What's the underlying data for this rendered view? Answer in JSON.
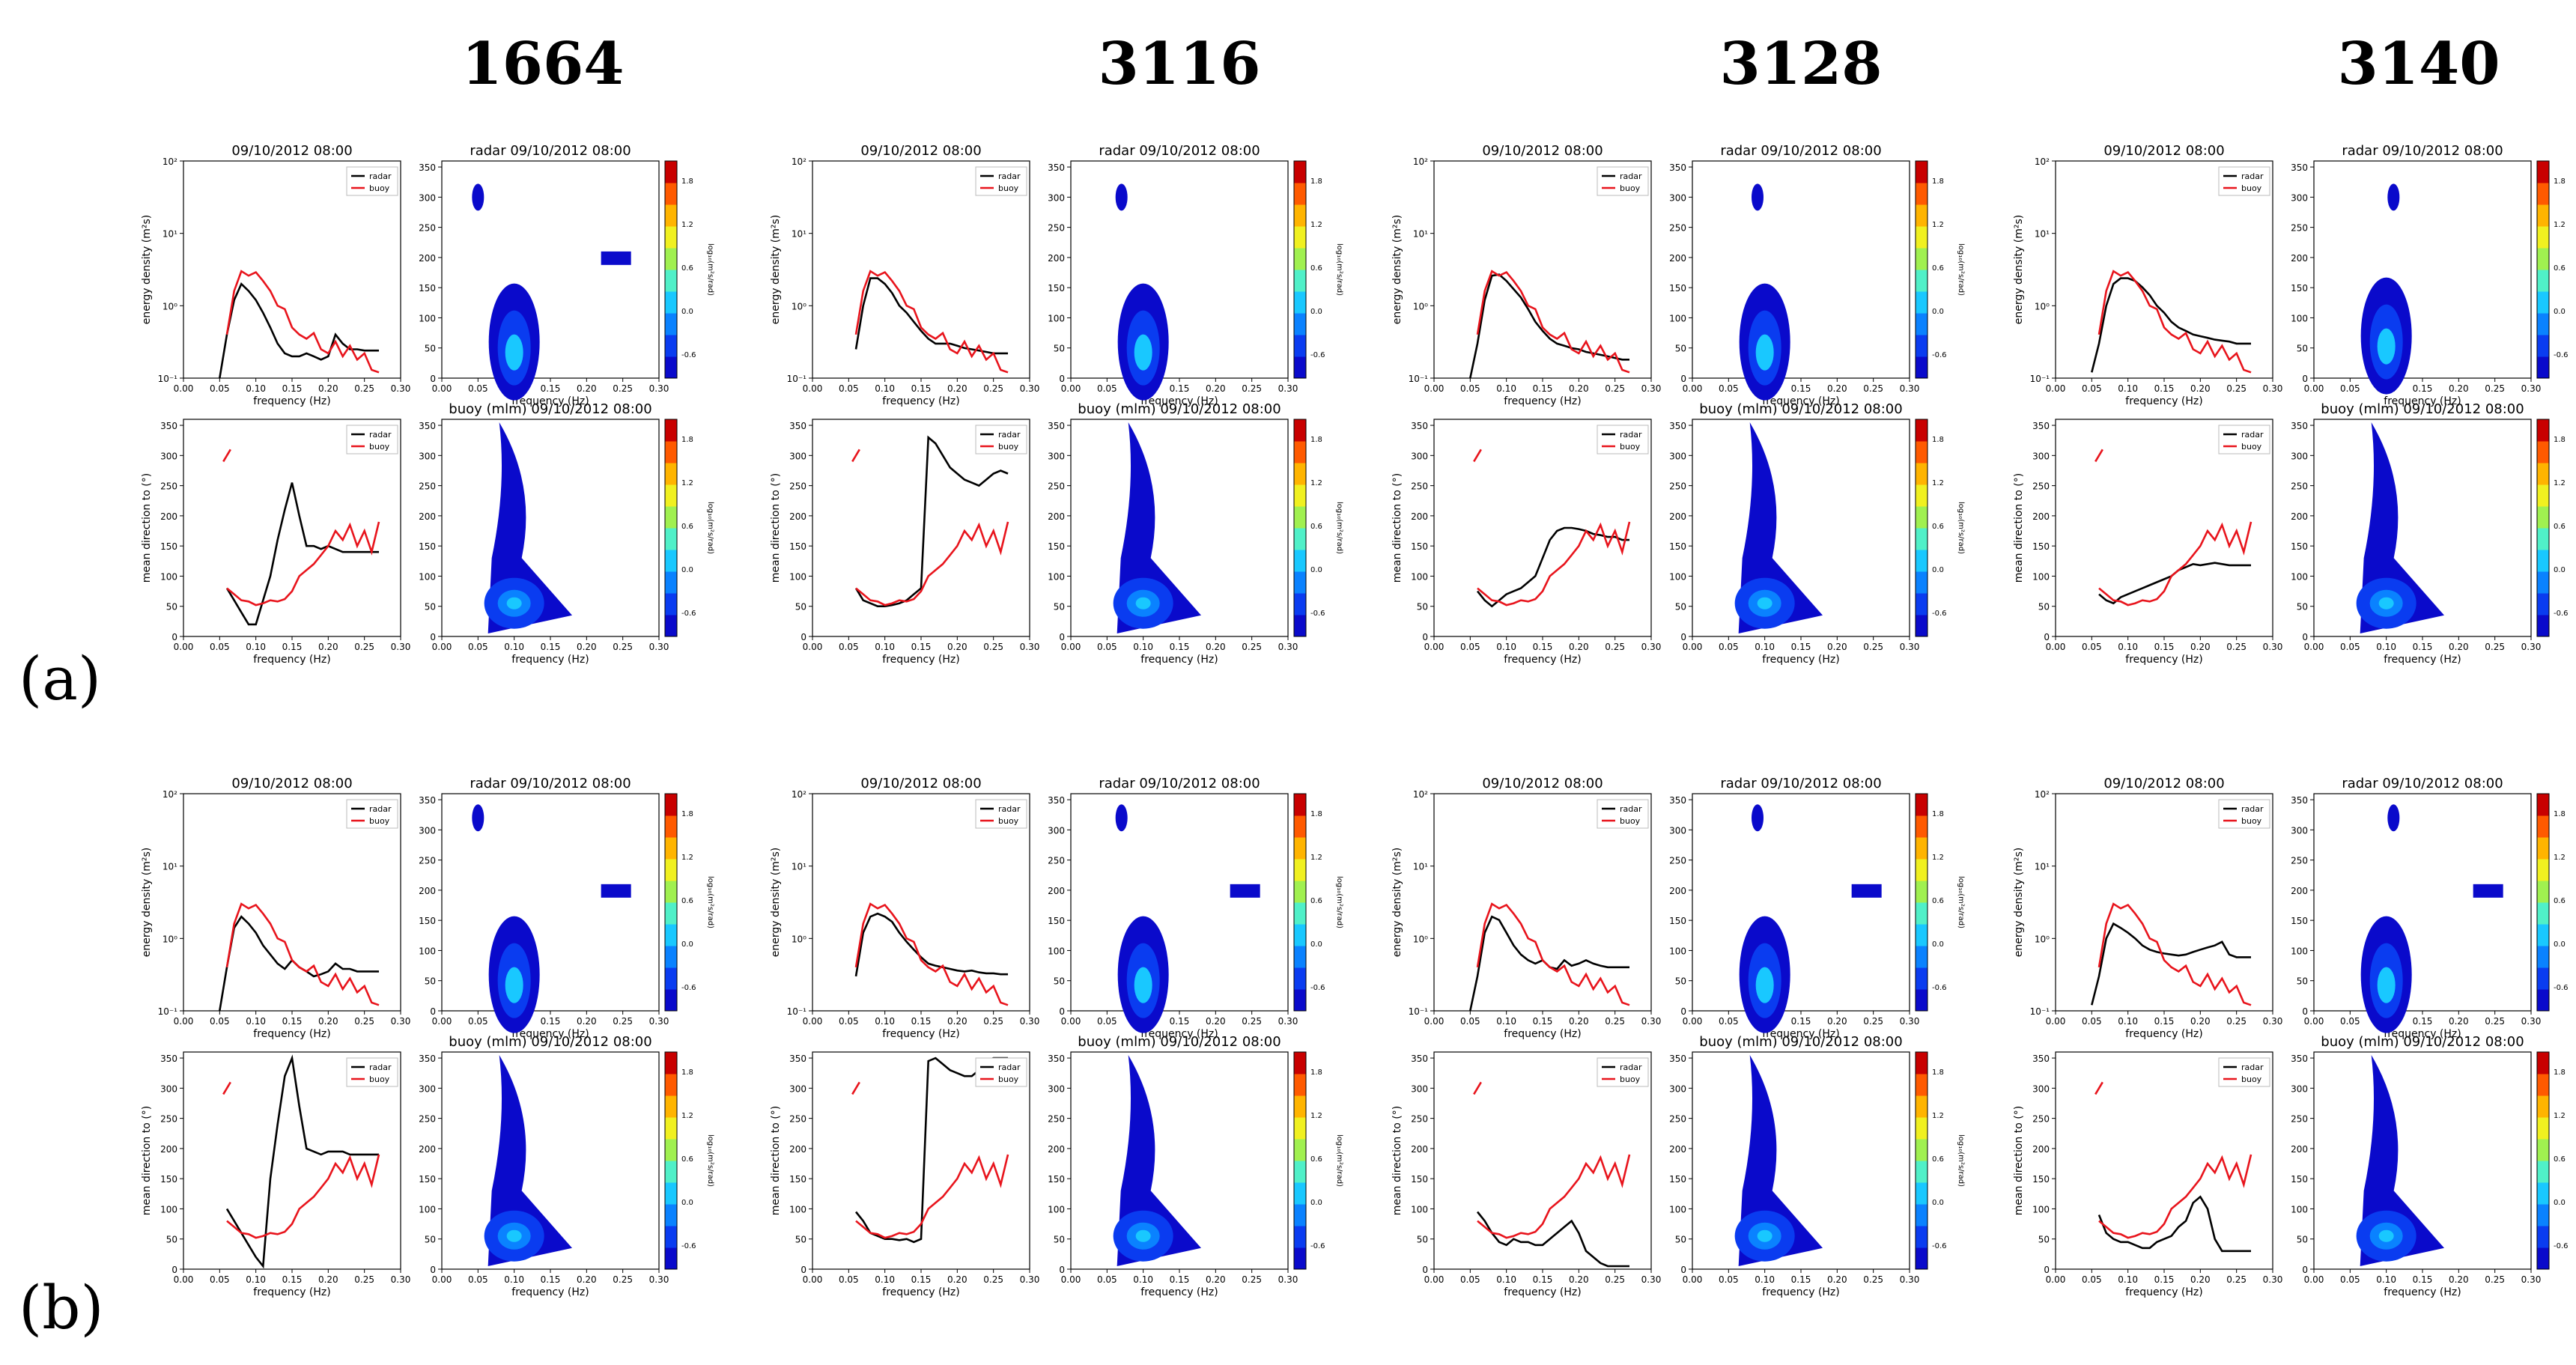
{
  "figure": {
    "columns": [
      "1664",
      "3116",
      "3128",
      "3140"
    ],
    "rows": [
      "(a)",
      "(b)"
    ]
  },
  "common": {
    "date_title": "09/10/2012 08:00",
    "radar_title": "radar 09/10/2012 08:00",
    "buoy_title": "buoy (mlm) 09/10/2012 08:00",
    "xlabel": "frequency (Hz)",
    "ylabel_energy": "energy density (m²s)",
    "ylabel_dir": "mean direction to (°)",
    "cbar_label": "log₁₀(m²s/rad)",
    "legend": [
      "radar",
      "buoy"
    ],
    "colors": {
      "radar": "#000000",
      "buoy": "#e8141c"
    }
  },
  "chart_data": {
    "type": "line",
    "freq_ticks": [
      "0.00",
      "0.05",
      "0.10",
      "0.15",
      "0.20",
      "0.25",
      "0.30"
    ],
    "energy_ticks": [
      "10⁻¹",
      "10⁰",
      "10¹",
      "10²"
    ],
    "dir_ticks": [
      "0",
      "50",
      "100",
      "150",
      "200",
      "250",
      "300",
      "350"
    ],
    "cbar_ticks": [
      "1.8",
      "1.2",
      "0.6",
      "0.0",
      "-0.6"
    ],
    "energy_ylim": [
      0.1,
      100
    ],
    "dir_ylim": [
      0,
      360
    ],
    "x": [
      0.05,
      0.06,
      0.07,
      0.08,
      0.09,
      0.1,
      0.11,
      0.12,
      0.13,
      0.14,
      0.15,
      0.16,
      0.17,
      0.18,
      0.19,
      0.2,
      0.21,
      0.22,
      0.23,
      0.24,
      0.25,
      0.26,
      0.27
    ],
    "buoy_energy": [
      null,
      0.4,
      1.6,
      3.0,
      2.6,
      2.9,
      2.2,
      1.6,
      1.0,
      0.9,
      0.5,
      0.4,
      0.35,
      0.42,
      0.25,
      0.22,
      0.32,
      0.2,
      0.28,
      0.18,
      0.22,
      0.13,
      0.12
    ],
    "buoy_direction": [
      null,
      80,
      70,
      60,
      58,
      52,
      55,
      60,
      58,
      62,
      75,
      100,
      110,
      120,
      135,
      150,
      175,
      160,
      185,
      150,
      175,
      140,
      190
    ],
    "rows": [
      {
        "label": "(a)",
        "energy": [
          [
            0.1,
            0.4,
            1.2,
            2.0,
            1.6,
            1.2,
            0.8,
            0.5,
            0.3,
            0.22,
            0.2,
            0.2,
            0.22,
            0.2,
            0.18,
            0.2,
            0.4,
            0.3,
            0.25,
            0.25,
            0.24,
            0.24,
            0.24
          ],
          [
            null,
            0.25,
            1.0,
            2.4,
            2.4,
            2.0,
            1.5,
            1.0,
            0.8,
            0.6,
            0.45,
            0.35,
            0.3,
            0.3,
            0.3,
            0.28,
            0.26,
            0.25,
            0.24,
            0.23,
            0.22,
            0.22,
            0.22
          ],
          [
            0.1,
            0.3,
            1.2,
            2.6,
            2.7,
            2.2,
            1.7,
            1.3,
            0.9,
            0.6,
            0.45,
            0.35,
            0.3,
            0.28,
            0.26,
            0.25,
            0.23,
            0.22,
            0.21,
            0.2,
            0.19,
            0.18,
            0.18
          ],
          [
            0.12,
            0.3,
            1.0,
            2.0,
            2.4,
            2.4,
            2.2,
            1.8,
            1.4,
            1.0,
            0.8,
            0.6,
            0.5,
            0.45,
            0.4,
            0.38,
            0.36,
            0.34,
            0.33,
            0.32,
            0.3,
            0.3,
            0.3
          ]
        ],
        "direction": [
          [
            null,
            80,
            60,
            40,
            20,
            20,
            60,
            100,
            160,
            210,
            255,
            200,
            150,
            150,
            145,
            150,
            145,
            140,
            140,
            140,
            140,
            140,
            140
          ],
          [
            null,
            80,
            60,
            55,
            50,
            50,
            52,
            55,
            60,
            70,
            80,
            330,
            320,
            300,
            280,
            270,
            260,
            255,
            250,
            260,
            270,
            275,
            270
          ],
          [
            null,
            75,
            60,
            50,
            60,
            70,
            75,
            80,
            90,
            100,
            130,
            160,
            175,
            180,
            180,
            178,
            175,
            170,
            168,
            165,
            165,
            160,
            160
          ],
          [
            null,
            70,
            60,
            55,
            65,
            70,
            75,
            80,
            85,
            90,
            95,
            100,
            110,
            115,
            120,
            118,
            120,
            122,
            120,
            118,
            118,
            118,
            118
          ]
        ]
      },
      {
        "label": "(b)",
        "energy": [
          [
            0.1,
            0.4,
            1.4,
            2.0,
            1.6,
            1.2,
            0.8,
            0.6,
            0.45,
            0.38,
            0.5,
            0.4,
            0.35,
            0.3,
            0.32,
            0.35,
            0.45,
            0.38,
            0.38,
            0.35,
            0.35,
            0.35,
            0.35
          ],
          [
            null,
            0.3,
            1.2,
            2.0,
            2.2,
            2.0,
            1.7,
            1.2,
            0.9,
            0.7,
            0.55,
            0.45,
            0.42,
            0.4,
            0.38,
            0.36,
            0.35,
            0.36,
            0.34,
            0.33,
            0.33,
            0.32,
            0.32
          ],
          [
            0.1,
            0.3,
            1.2,
            2.0,
            1.8,
            1.2,
            0.8,
            0.6,
            0.5,
            0.45,
            0.5,
            0.4,
            0.38,
            0.5,
            0.42,
            0.45,
            0.5,
            0.45,
            0.42,
            0.4,
            0.4,
            0.4,
            0.4
          ],
          [
            0.12,
            0.3,
            1.0,
            1.6,
            1.4,
            1.2,
            1.0,
            0.8,
            0.7,
            0.65,
            0.62,
            0.6,
            0.58,
            0.6,
            0.65,
            0.7,
            0.75,
            0.8,
            0.9,
            0.6,
            0.55,
            0.55,
            0.55
          ]
        ],
        "direction": [
          [
            null,
            100,
            80,
            60,
            40,
            20,
            5,
            150,
            240,
            320,
            350,
            270,
            200,
            195,
            190,
            195,
            195,
            195,
            190,
            190,
            190,
            190,
            190
          ],
          [
            null,
            95,
            80,
            60,
            55,
            50,
            50,
            48,
            50,
            45,
            50,
            345,
            350,
            340,
            330,
            325,
            320,
            320,
            330,
            345,
            350,
            350,
            350
          ],
          [
            null,
            95,
            80,
            60,
            45,
            40,
            50,
            45,
            45,
            40,
            40,
            50,
            60,
            70,
            80,
            60,
            30,
            20,
            10,
            5,
            5,
            5,
            5
          ],
          [
            null,
            90,
            60,
            50,
            45,
            45,
            40,
            35,
            35,
            45,
            50,
            55,
            70,
            80,
            110,
            120,
            100,
            50,
            30,
            30,
            30,
            30,
            30
          ]
        ]
      }
    ]
  }
}
